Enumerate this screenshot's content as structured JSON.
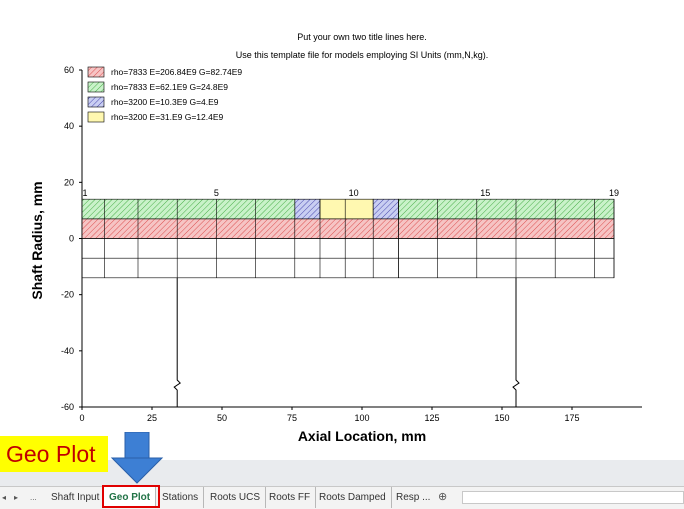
{
  "window": {
    "sheet_tabs": {
      "nav_prev": "◂",
      "nav_next": "▸",
      "nav_more": "...",
      "tabs": [
        "Shaft Input",
        "Geo Plot",
        "Stations",
        "Roots UCS",
        "Roots FF",
        "Roots Damped",
        "Resp ..."
      ],
      "active": "Geo Plot",
      "more_right": "...",
      "add": "⊕",
      "add_icon": "plus-circle-icon"
    }
  },
  "callout": {
    "label": "Geo Plot",
    "color": "#ffff00",
    "text_color": "#c00000",
    "arrow_color": "#3d7fd4"
  },
  "chart_data": {
    "type": "shaft-geometry",
    "title": "Put your own two title lines here.",
    "subtitle": "Use this template file for models employing SI Units (mm,N,kg).",
    "xlabel": "Axial Location, mm",
    "ylabel": "Shaft Radius, mm",
    "xlim": [
      0,
      200
    ],
    "ylim": [
      -60,
      60
    ],
    "xticks": [
      0,
      25,
      50,
      75,
      100,
      125,
      150,
      175
    ],
    "yticks": [
      -60,
      -40,
      -20,
      0,
      20,
      40,
      60
    ],
    "legend_position": "top-left",
    "materials": [
      {
        "label": "rho=7833  E=206.84E9  G=82.74E9",
        "fill": "#f6c4c4",
        "hatch": "#d94040"
      },
      {
        "label": "rho=7833  E=62.1E9  G=24.8E9",
        "fill": "#c9f2c9",
        "hatch": "#3aa83a"
      },
      {
        "label": "rho=3200  E=10.3E9  G=4.E9",
        "fill": "#c9cef2",
        "hatch": "#3a3aa8"
      },
      {
        "label": "rho=3200  E=31.E9  G=12.4E9",
        "fill": "#fff8b0",
        "hatch": "#fff8b0"
      }
    ],
    "station_x": [
      0,
      8,
      20,
      34,
      48,
      62,
      76,
      85,
      94,
      104,
      113,
      113,
      127,
      141,
      155,
      169,
      183,
      190
    ],
    "station_labels": [
      {
        "x": 0,
        "label": "1"
      },
      {
        "x": 48,
        "label": "5"
      },
      {
        "x": 97,
        "label": "10"
      },
      {
        "x": 144,
        "label": "15"
      },
      {
        "x": 190,
        "label": "19"
      }
    ],
    "layers": [
      {
        "y0": 0,
        "y1": 7,
        "material": 0,
        "x0": 0,
        "x1": 190
      },
      {
        "y0": 7,
        "y1": 14,
        "material": 1,
        "x0": 0,
        "x1": 76
      },
      {
        "y0": 7,
        "y1": 14,
        "material": 2,
        "x0": 76,
        "x1": 85
      },
      {
        "y0": 7,
        "y1": 14,
        "material": 3,
        "x0": 85,
        "x1": 104
      },
      {
        "y0": 7,
        "y1": 14,
        "material": 2,
        "x0": 104,
        "x1": 113
      },
      {
        "y0": 7,
        "y1": 14,
        "material": 1,
        "x0": 113,
        "x1": 190
      }
    ],
    "mirror_outline": {
      "y_bottom": -14,
      "y_inner": -7
    },
    "supports": [
      {
        "x": 34,
        "y_top": -14,
        "y_bottom": -60
      },
      {
        "x": 155,
        "y_top": -14,
        "y_bottom": -60
      }
    ]
  }
}
